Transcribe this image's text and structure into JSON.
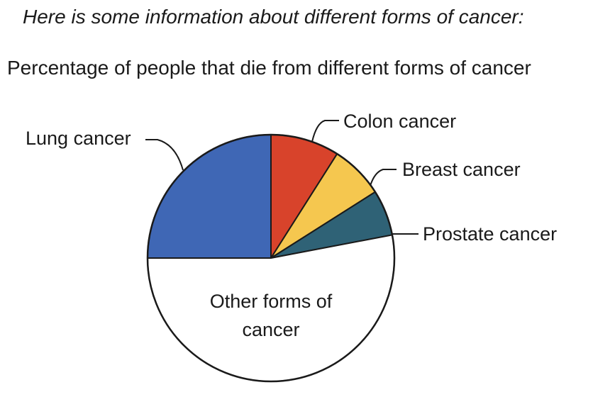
{
  "intro_text": "Here is some information about different forms of cancer:",
  "chart_data": {
    "type": "pie",
    "title": "Percentage of people that die from different forms of cancer",
    "slices": [
      {
        "label": "Lung cancer",
        "value": 25,
        "color": "#3f67b5"
      },
      {
        "label": "Colon cancer",
        "value": 9,
        "color": "#d8432b"
      },
      {
        "label": "Breast cancer",
        "value": 7,
        "color": "#f5c74f"
      },
      {
        "label": "Prostate cancer",
        "value": 6,
        "color": "#2f6276"
      },
      {
        "label": "Other forms of cancer",
        "value": 53,
        "color": "#ffffff"
      }
    ],
    "start": "12 o'clock",
    "direction": "counter-clockwise from top for lung cancer, clockwise for others"
  }
}
